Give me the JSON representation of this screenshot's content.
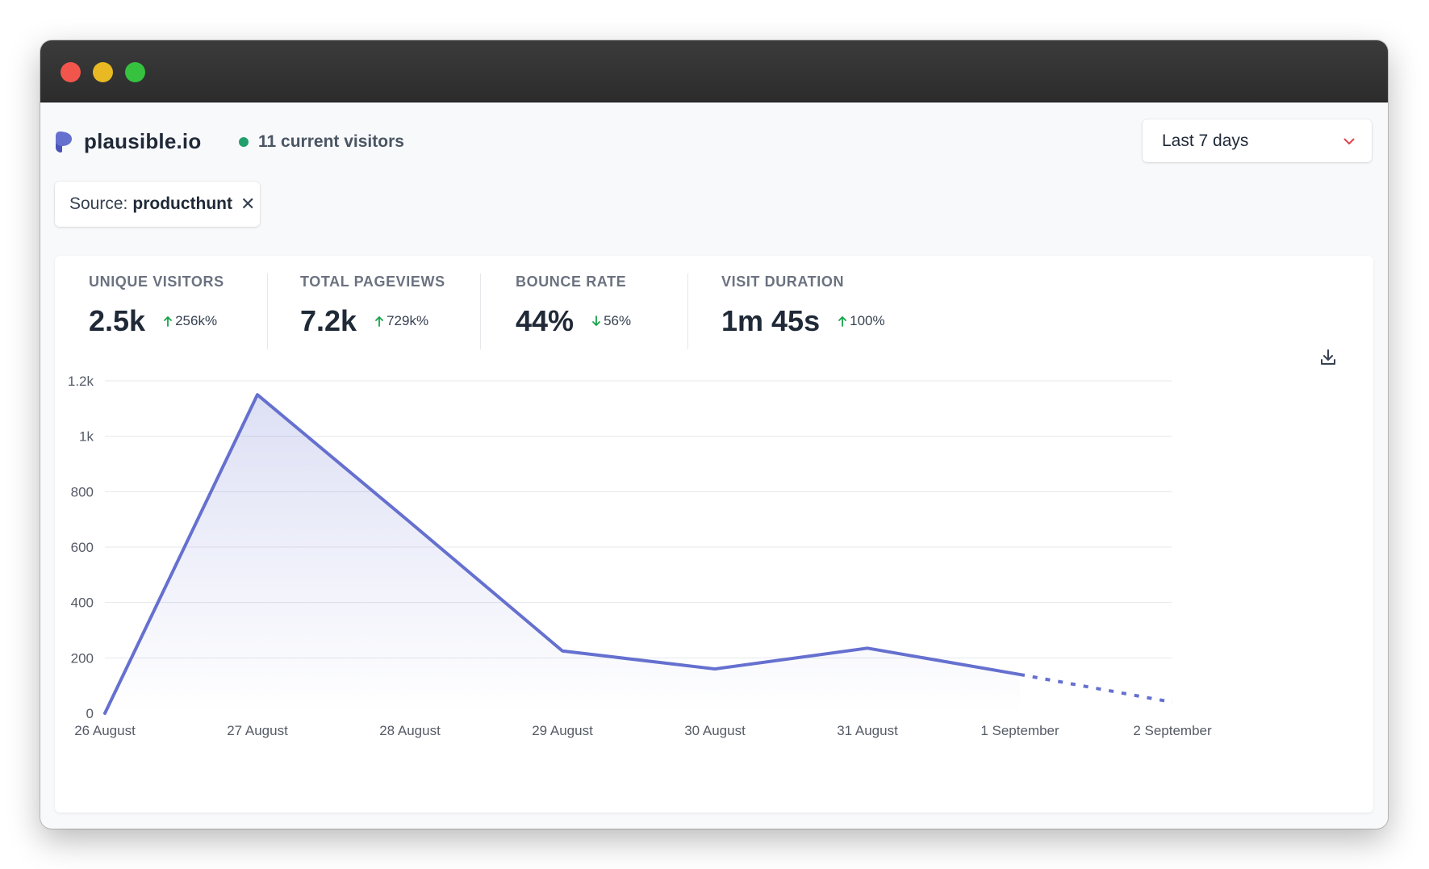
{
  "header": {
    "brand": "plausible.io",
    "live_visitors": "11 current visitors",
    "period": "Last 7 days"
  },
  "filter": {
    "key": "Source:",
    "value": "producthunt",
    "remove_symbol": "✕"
  },
  "stats": [
    {
      "title": "UNIQUE VISITORS",
      "value": "2.5k",
      "change": "256k%",
      "direction": "up"
    },
    {
      "title": "TOTAL PAGEVIEWS",
      "value": "7.2k",
      "change": "729k%",
      "direction": "up"
    },
    {
      "title": "BOUNCE RATE",
      "value": "44%",
      "change": "56%",
      "direction": "down"
    },
    {
      "title": "VISIT DURATION",
      "value": "1m 45s",
      "change": "100%",
      "direction": "up"
    }
  ],
  "icons": {
    "logo": "plausible-logo-icon",
    "live": "live-dot-icon",
    "period": "chevron-down-icon",
    "download": "download-icon",
    "change_up": "arrow-up-icon",
    "change_down": "arrow-down-icon"
  },
  "colors": {
    "accent": "#6570cf",
    "live": "#22a06b",
    "chevron": "#e0434c",
    "up": "#16a34a",
    "down": "#16a34a"
  },
  "chart_data": {
    "type": "line",
    "title": "",
    "xlabel": "",
    "ylabel": "",
    "ylim": [
      0,
      1200
    ],
    "y_ticks": [
      0,
      200,
      400,
      600,
      800,
      1000,
      1200
    ],
    "y_tick_labels": [
      "0",
      "200",
      "400",
      "600",
      "800",
      "1k",
      "1.2k"
    ],
    "categories": [
      "26 August",
      "27 August",
      "28 August",
      "29 August",
      "30 August",
      "31 August",
      "1 September",
      "2 September"
    ],
    "series": [
      {
        "values": [
          0,
          1150,
          690,
          225,
          160,
          235,
          140,
          40
        ],
        "dashed_from_index": 6
      }
    ],
    "grid": true,
    "area_fill": true
  }
}
